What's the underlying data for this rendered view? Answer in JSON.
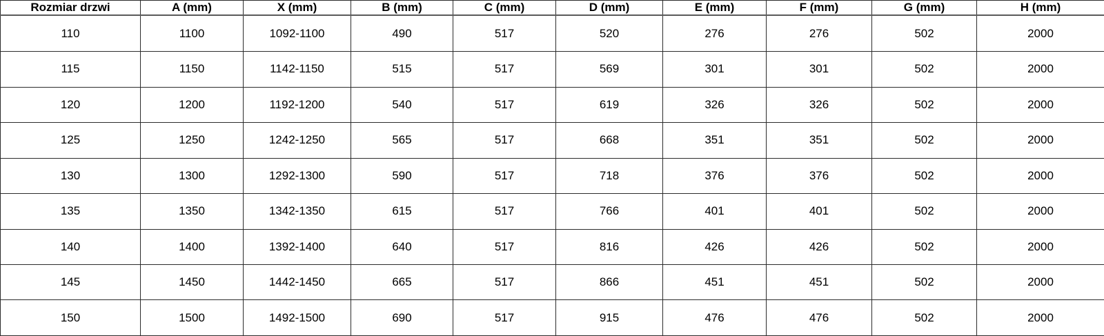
{
  "table": {
    "headers": [
      "Rozmiar drzwi",
      "A (mm)",
      "X (mm)",
      "B (mm)",
      "C (mm)",
      "D (mm)",
      "E (mm)",
      "F (mm)",
      "G (mm)",
      "H (mm)"
    ],
    "rows": [
      [
        "110",
        "1100",
        "1092-1100",
        "490",
        "517",
        "520",
        "276",
        "276",
        "502",
        "2000"
      ],
      [
        "115",
        "1150",
        "1142-1150",
        "515",
        "517",
        "569",
        "301",
        "301",
        "502",
        "2000"
      ],
      [
        "120",
        "1200",
        "1192-1200",
        "540",
        "517",
        "619",
        "326",
        "326",
        "502",
        "2000"
      ],
      [
        "125",
        "1250",
        "1242-1250",
        "565",
        "517",
        "668",
        "351",
        "351",
        "502",
        "2000"
      ],
      [
        "130",
        "1300",
        "1292-1300",
        "590",
        "517",
        "718",
        "376",
        "376",
        "502",
        "2000"
      ],
      [
        "135",
        "1350",
        "1342-1350",
        "615",
        "517",
        "766",
        "401",
        "401",
        "502",
        "2000"
      ],
      [
        "140",
        "1400",
        "1392-1400",
        "640",
        "517",
        "816",
        "426",
        "426",
        "502",
        "2000"
      ],
      [
        "145",
        "1450",
        "1442-1450",
        "665",
        "517",
        "866",
        "451",
        "451",
        "502",
        "2000"
      ],
      [
        "150",
        "1500",
        "1492-1500",
        "690",
        "517",
        "915",
        "476",
        "476",
        "502",
        "2000"
      ]
    ]
  },
  "colors": {
    "background": "#ffffff",
    "text": "#000000",
    "grid_border": "#2b2b2b",
    "header_separator": "#5a5a5a"
  }
}
